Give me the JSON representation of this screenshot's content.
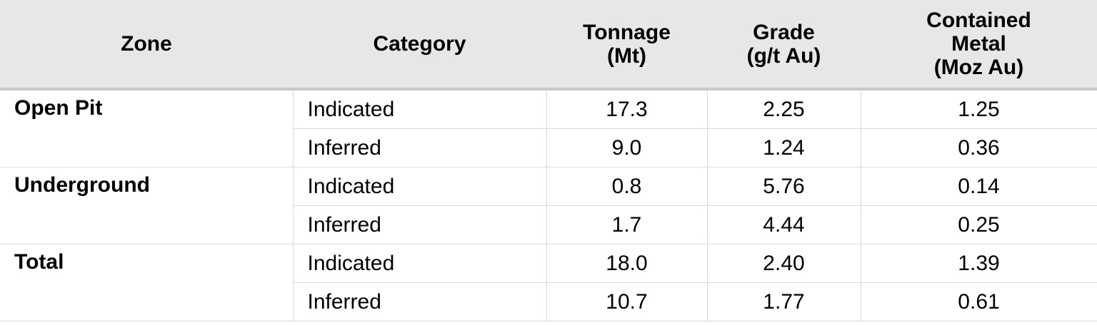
{
  "table": {
    "header": [
      [
        "Zone"
      ],
      [
        "Category"
      ],
      [
        "Tonnage",
        "(Mt)"
      ],
      [
        "Grade",
        "(g/t Au)"
      ],
      [
        "Contained",
        "Metal",
        "(Moz Au)"
      ]
    ],
    "groups": [
      {
        "zone": "Open Pit",
        "rows": [
          [
            "Indicated",
            "17.3",
            "2.25",
            "1.25"
          ],
          [
            "Inferred",
            "9.0",
            "1.24",
            "0.36"
          ]
        ]
      },
      {
        "zone": "Underground",
        "rows": [
          [
            "Indicated",
            "0.8",
            "5.76",
            "0.14"
          ],
          [
            "Inferred",
            "1.7",
            "4.44",
            "0.25"
          ]
        ]
      },
      {
        "zone": "Total",
        "rows": [
          [
            "Indicated",
            "18.0",
            "2.40",
            "1.39"
          ],
          [
            "Inferred",
            "10.7",
            "1.77",
            "0.61"
          ]
        ]
      }
    ]
  }
}
